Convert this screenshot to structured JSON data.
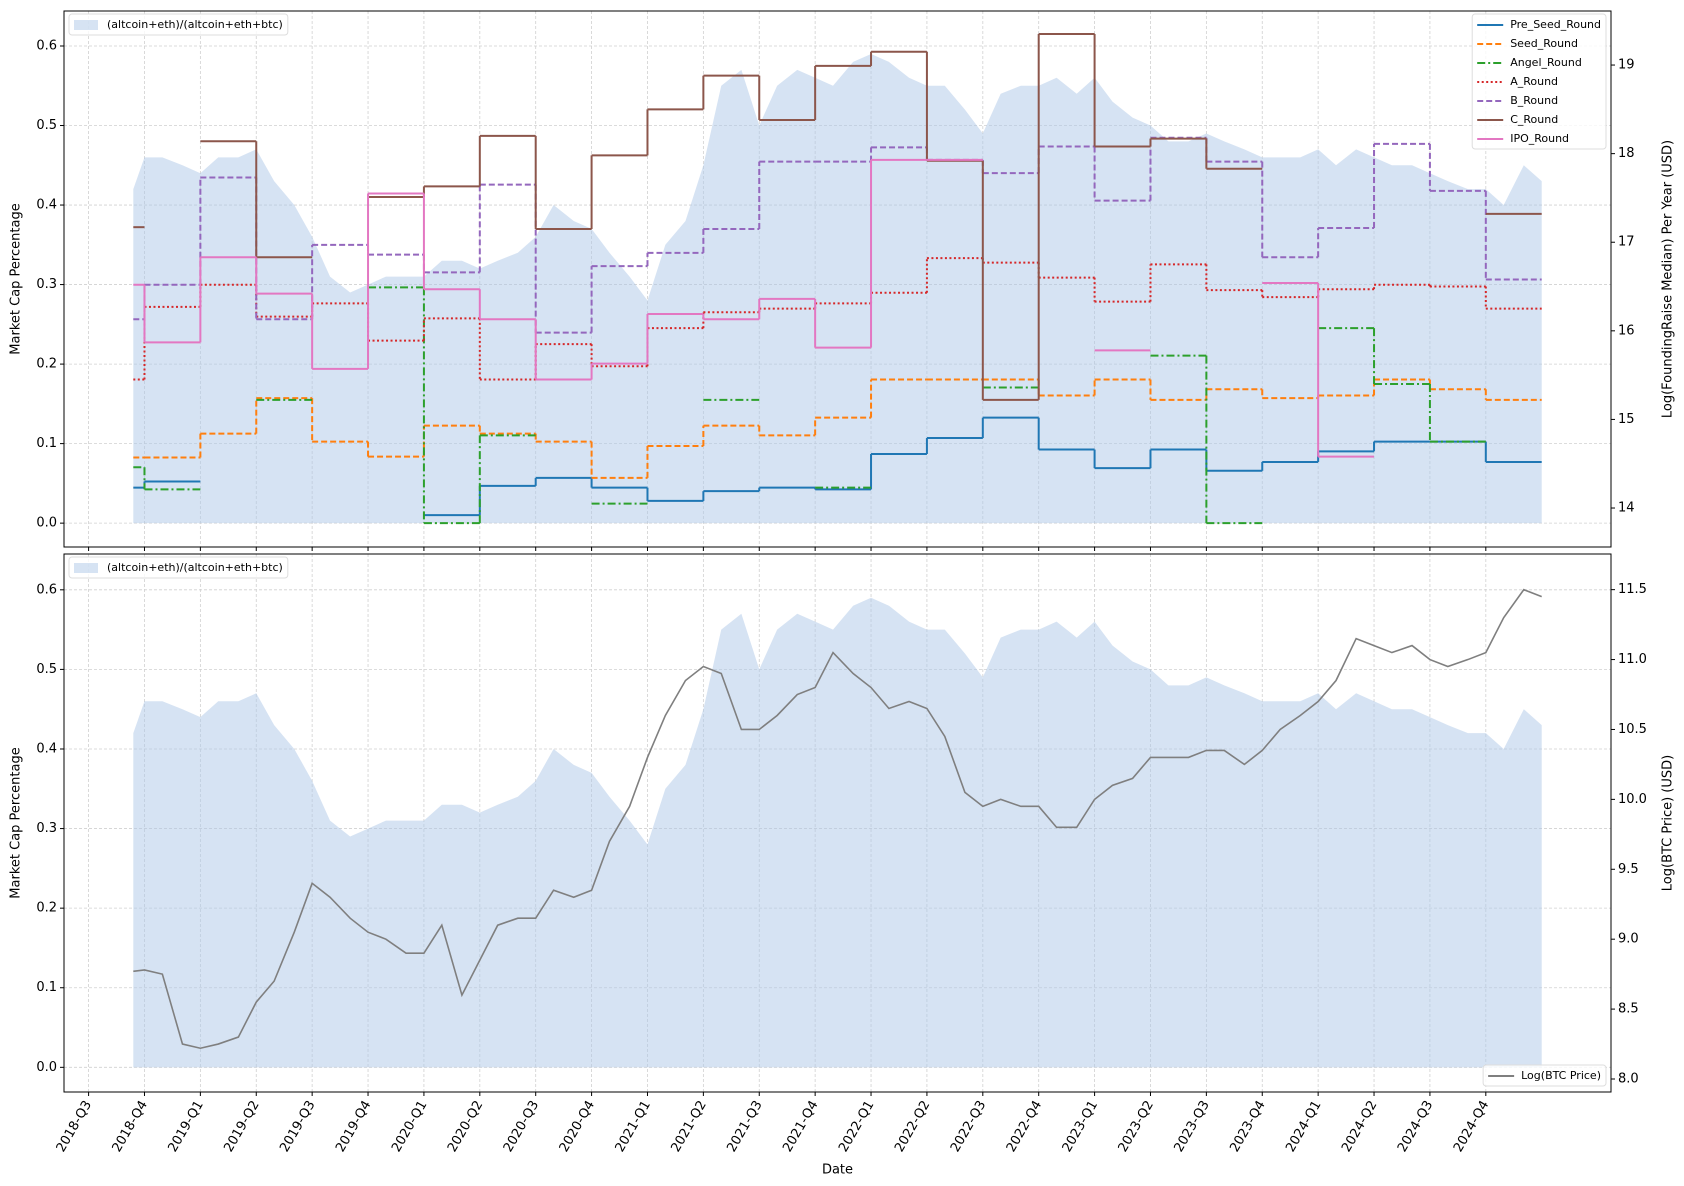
{
  "chart_data": [
    {
      "type": "step",
      "y_label": "Market Cap Percentage",
      "y2_label": "Log(FoundingRaise Median) Per Year (USD)",
      "xlim": [
        2018.39,
        2025.31
      ],
      "ylim": [
        -0.03,
        0.644
      ],
      "yticks": [
        {
          "value": 0,
          "label": "0.0"
        },
        0.1,
        0.2,
        0.3,
        0.4,
        0.5,
        0.6
      ],
      "y2lim": [
        13.56,
        19.61
      ],
      "y2ticks": [
        14,
        15,
        16,
        17,
        18,
        19
      ],
      "grid": true,
      "x_edges": [
        2018.7,
        2018.75,
        2019,
        2019.25,
        2019.5,
        2019.75,
        2020,
        2020.25,
        2020.5,
        2020.75,
        2021,
        2021.25,
        2021.5,
        2021.75,
        2022,
        2022.25,
        2022.5,
        2022.75,
        2023,
        2023.25,
        2023.5,
        2023.75,
        2024,
        2024.25,
        2024.5,
        2024.75,
        2025
      ],
      "series": [
        {
          "name": "(altcoin+eth)/(altcoin+eth+btc)",
          "type": "area",
          "color": "#aec7e8",
          "legend": "upper left",
          "x": [
            2018.7,
            2018.75,
            2018.83,
            2018.92,
            2019,
            2019.08,
            2019.17,
            2019.25,
            2019.33,
            2019.42,
            2019.5,
            2019.58,
            2019.67,
            2019.75,
            2019.83,
            2019.92,
            2020,
            2020.08,
            2020.17,
            2020.25,
            2020.33,
            2020.42,
            2020.5,
            2020.58,
            2020.67,
            2020.75,
            2020.83,
            2020.92,
            2021,
            2021.08,
            2021.17,
            2021.25,
            2021.33,
            2021.42,
            2021.5,
            2021.58,
            2021.67,
            2021.75,
            2021.83,
            2021.92,
            2022,
            2022.08,
            2022.17,
            2022.25,
            2022.33,
            2022.42,
            2022.5,
            2022.58,
            2022.67,
            2022.75,
            2022.83,
            2022.92,
            2023,
            2023.08,
            2023.17,
            2023.25,
            2023.33,
            2023.42,
            2023.5,
            2023.58,
            2023.67,
            2023.75,
            2023.83,
            2023.92,
            2024,
            2024.08,
            2024.17,
            2024.25,
            2024.33,
            2024.42,
            2024.5,
            2024.58,
            2024.67,
            2024.75,
            2024.83,
            2024.92,
            2025
          ],
          "values": [
            0.42,
            0.46,
            0.46,
            0.45,
            0.44,
            0.46,
            0.46,
            0.47,
            0.43,
            0.4,
            0.36,
            0.31,
            0.29,
            0.3,
            0.31,
            0.31,
            0.31,
            0.33,
            0.33,
            0.32,
            0.33,
            0.34,
            0.36,
            0.4,
            0.38,
            0.37,
            0.34,
            0.31,
            0.28,
            0.35,
            0.38,
            0.45,
            0.55,
            0.57,
            0.5,
            0.55,
            0.57,
            0.56,
            0.55,
            0.58,
            0.59,
            0.58,
            0.56,
            0.55,
            0.55,
            0.52,
            0.49,
            0.54,
            0.55,
            0.55,
            0.56,
            0.54,
            0.56,
            0.53,
            0.51,
            0.5,
            0.48,
            0.48,
            0.49,
            0.48,
            0.47,
            0.46,
            0.46,
            0.46,
            0.47,
            0.45,
            0.47,
            0.46,
            0.45,
            0.45,
            0.44,
            0.43,
            0.42,
            0.42,
            0.4,
            0.45,
            0.43
          ]
        },
        {
          "name": "Pre_Seed_Round",
          "axis": "y2",
          "color": "#1f77b4",
          "style": "solid",
          "legend": "upper right",
          "values": [
            14.23,
            14.3,
            null,
            null,
            null,
            null,
            13.92,
            14.25,
            14.34,
            14.23,
            14.08,
            14.19,
            14.23,
            14.21,
            14.61,
            14.79,
            15.02,
            14.66,
            14.45,
            14.66,
            14.42,
            14.52,
            14.64,
            14.75,
            14.75,
            14.52
          ]
        },
        {
          "name": "Seed_Round",
          "axis": "y2",
          "color": "#ff7f0e",
          "style": "dashed",
          "legend": "upper right",
          "values": [
            14.57,
            14.57,
            14.84,
            15.24,
            14.75,
            14.58,
            14.93,
            14.84,
            14.75,
            14.34,
            14.7,
            14.93,
            14.82,
            15.02,
            15.45,
            15.45,
            15.45,
            15.27,
            15.45,
            15.22,
            15.34,
            15.24,
            15.27,
            15.45,
            15.34,
            15.22
          ]
        },
        {
          "name": "Angel_Round",
          "axis": "y2",
          "color": "#2ca02c",
          "style": "dashdot",
          "legend": "upper right",
          "values": [
            14.46,
            14.21,
            null,
            15.22,
            null,
            16.49,
            13.83,
            14.82,
            null,
            14.05,
            null,
            15.22,
            null,
            14.23,
            null,
            null,
            15.36,
            null,
            null,
            15.72,
            13.83,
            null,
            16.03,
            15.4,
            14.75,
            null
          ]
        },
        {
          "name": "A_Round",
          "axis": "y2",
          "color": "#d62728",
          "style": "dotted",
          "legend": "upper right",
          "values": [
            15.45,
            16.27,
            16.52,
            16.16,
            16.31,
            15.89,
            16.14,
            15.45,
            15.85,
            15.6,
            16.03,
            16.21,
            16.25,
            16.31,
            16.43,
            16.82,
            16.77,
            16.6,
            16.33,
            16.75,
            16.46,
            16.38,
            16.47,
            16.52,
            16.5,
            16.25
          ]
        },
        {
          "name": "B_Round",
          "axis": "y2",
          "color": "#9467bd",
          "style": "dashed",
          "legend": "upper right",
          "values": [
            16.13,
            16.52,
            17.73,
            16.13,
            16.97,
            16.86,
            16.66,
            17.65,
            15.98,
            16.73,
            16.88,
            17.15,
            17.91,
            17.91,
            18.07,
            17.93,
            17.78,
            18.08,
            17.47,
            18.18,
            17.91,
            16.83,
            17.16,
            18.11,
            17.58,
            16.58
          ]
        },
        {
          "name": "C_Round",
          "axis": "y2",
          "color": "#8c564b",
          "style": "solid",
          "legend": "upper right",
          "values": [
            17.17,
            null,
            18.14,
            16.83,
            null,
            17.51,
            17.63,
            18.2,
            17.15,
            17.98,
            18.5,
            18.88,
            18.38,
            18.99,
            19.15,
            17.92,
            15.22,
            19.35,
            18.08,
            18.17,
            17.83,
            null,
            null,
            null,
            null,
            17.32
          ]
        },
        {
          "name": "IPO_Round",
          "axis": "y2",
          "color": "#e377c2",
          "style": "solid",
          "legend": "upper right",
          "values": [
            16.52,
            15.87,
            16.83,
            16.42,
            15.57,
            17.55,
            16.47,
            16.13,
            15.45,
            15.63,
            16.19,
            16.13,
            16.36,
            15.81,
            17.93,
            17.93,
            null,
            null,
            15.78,
            null,
            null,
            16.54,
            14.58,
            null,
            null,
            null
          ]
        }
      ]
    },
    {
      "type": "line",
      "x_label": "Date",
      "y_label": "Market Cap Percentage",
      "y2_label": "Log(BTC Price) (USD)",
      "xlim": [
        2018.39,
        2025.31
      ],
      "xticks": [
        {
          "value": 2018.5,
          "label": "2018-Q3"
        },
        {
          "value": 2018.75,
          "label": "2018-Q4"
        },
        {
          "value": 2019,
          "label": "2019-Q1"
        },
        {
          "value": 2019.25,
          "label": "2019-Q2"
        },
        {
          "value": 2019.5,
          "label": "2019-Q3"
        },
        {
          "value": 2019.75,
          "label": "2019-Q4"
        },
        {
          "value": 2020,
          "label": "2020-Q1"
        },
        {
          "value": 2020.25,
          "label": "2020-Q2"
        },
        {
          "value": 2020.5,
          "label": "2020-Q3"
        },
        {
          "value": 2020.75,
          "label": "2020-Q4"
        },
        {
          "value": 2021,
          "label": "2021-Q1"
        },
        {
          "value": 2021.25,
          "label": "2021-Q2"
        },
        {
          "value": 2021.5,
          "label": "2021-Q3"
        },
        {
          "value": 2021.75,
          "label": "2021-Q4"
        },
        {
          "value": 2022,
          "label": "2022-Q1"
        },
        {
          "value": 2022.25,
          "label": "2022-Q2"
        },
        {
          "value": 2022.5,
          "label": "2022-Q3"
        },
        {
          "value": 2022.75,
          "label": "2022-Q4"
        },
        {
          "value": 2023,
          "label": "2023-Q1"
        },
        {
          "value": 2023.25,
          "label": "2023-Q2"
        },
        {
          "value": 2023.5,
          "label": "2023-Q3"
        },
        {
          "value": 2023.75,
          "label": "2023-Q4"
        },
        {
          "value": 2024,
          "label": "2024-Q1"
        },
        {
          "value": 2024.25,
          "label": "2024-Q2"
        },
        {
          "value": 2024.5,
          "label": "2024-Q3"
        },
        {
          "value": 2024.75,
          "label": "2024-Q4"
        }
      ],
      "ylim": [
        -0.031,
        0.645
      ],
      "yticks": [
        {
          "value": 0,
          "label": "0.0"
        },
        0.1,
        0.2,
        0.3,
        0.4,
        0.5,
        0.6
      ],
      "y2lim": [
        7.907,
        11.755
      ],
      "y2ticks": [
        {
          "value": 8,
          "label": "8.0"
        },
        8.5,
        {
          "value": 9,
          "label": "9.0"
        },
        9.5,
        {
          "value": 10,
          "label": "10.0"
        },
        10.5,
        {
          "value": 11,
          "label": "11.0"
        },
        11.5
      ],
      "grid": true,
      "series": [
        {
          "name": "(altcoin+eth)/(altcoin+eth+btc)",
          "type": "area",
          "color": "#aec7e8",
          "legend": "upper left",
          "x": [
            2018.7,
            2018.75,
            2018.83,
            2018.92,
            2019,
            2019.08,
            2019.17,
            2019.25,
            2019.33,
            2019.42,
            2019.5,
            2019.58,
            2019.67,
            2019.75,
            2019.83,
            2019.92,
            2020,
            2020.08,
            2020.17,
            2020.25,
            2020.33,
            2020.42,
            2020.5,
            2020.58,
            2020.67,
            2020.75,
            2020.83,
            2020.92,
            2021,
            2021.08,
            2021.17,
            2021.25,
            2021.33,
            2021.42,
            2021.5,
            2021.58,
            2021.67,
            2021.75,
            2021.83,
            2021.92,
            2022,
            2022.08,
            2022.17,
            2022.25,
            2022.33,
            2022.42,
            2022.5,
            2022.58,
            2022.67,
            2022.75,
            2022.83,
            2022.92,
            2023,
            2023.08,
            2023.17,
            2023.25,
            2023.33,
            2023.42,
            2023.5,
            2023.58,
            2023.67,
            2023.75,
            2023.83,
            2023.92,
            2024,
            2024.08,
            2024.17,
            2024.25,
            2024.33,
            2024.42,
            2024.5,
            2024.58,
            2024.67,
            2024.75,
            2024.83,
            2024.92,
            2025
          ],
          "values": [
            0.42,
            0.46,
            0.46,
            0.45,
            0.44,
            0.46,
            0.46,
            0.47,
            0.43,
            0.4,
            0.36,
            0.31,
            0.29,
            0.3,
            0.31,
            0.31,
            0.31,
            0.33,
            0.33,
            0.32,
            0.33,
            0.34,
            0.36,
            0.4,
            0.38,
            0.37,
            0.34,
            0.31,
            0.28,
            0.35,
            0.38,
            0.45,
            0.55,
            0.57,
            0.5,
            0.55,
            0.57,
            0.56,
            0.55,
            0.58,
            0.59,
            0.58,
            0.56,
            0.55,
            0.55,
            0.52,
            0.49,
            0.54,
            0.55,
            0.55,
            0.56,
            0.54,
            0.56,
            0.53,
            0.51,
            0.5,
            0.48,
            0.48,
            0.49,
            0.48,
            0.47,
            0.46,
            0.46,
            0.46,
            0.47,
            0.45,
            0.47,
            0.46,
            0.45,
            0.45,
            0.44,
            0.43,
            0.42,
            0.42,
            0.4,
            0.45,
            0.43
          ]
        },
        {
          "name": "Log(BTC Price)",
          "axis": "y2",
          "color": "#7f7f7f",
          "style": "solid",
          "legend": "lower right",
          "x": [
            2018.7,
            2018.75,
            2018.83,
            2018.92,
            2019,
            2019.08,
            2019.17,
            2019.25,
            2019.33,
            2019.42,
            2019.5,
            2019.58,
            2019.67,
            2019.75,
            2019.83,
            2019.92,
            2020,
            2020.08,
            2020.17,
            2020.25,
            2020.33,
            2020.42,
            2020.5,
            2020.58,
            2020.67,
            2020.75,
            2020.83,
            2020.92,
            2021,
            2021.08,
            2021.17,
            2021.25,
            2021.33,
            2021.42,
            2021.5,
            2021.58,
            2021.67,
            2021.75,
            2021.83,
            2021.92,
            2022,
            2022.08,
            2022.17,
            2022.25,
            2022.33,
            2022.42,
            2022.5,
            2022.58,
            2022.67,
            2022.75,
            2022.83,
            2022.92,
            2023,
            2023.08,
            2023.17,
            2023.25,
            2023.33,
            2023.42,
            2023.5,
            2023.58,
            2023.67,
            2023.75,
            2023.83,
            2023.92,
            2024,
            2024.08,
            2024.17,
            2024.25,
            2024.33,
            2024.42,
            2024.5,
            2024.58,
            2024.67,
            2024.75,
            2024.83,
            2024.92,
            2025
          ],
          "values": [
            8.77,
            8.78,
            8.75,
            8.25,
            8.22,
            8.25,
            8.3,
            8.55,
            8.7,
            9.05,
            9.4,
            9.3,
            9.15,
            9.05,
            9.0,
            8.9,
            8.9,
            9.1,
            8.6,
            8.85,
            9.1,
            9.15,
            9.15,
            9.35,
            9.3,
            9.35,
            9.7,
            9.95,
            10.3,
            10.6,
            10.85,
            10.95,
            10.9,
            10.5,
            10.5,
            10.6,
            10.75,
            10.8,
            11.05,
            10.9,
            10.8,
            10.65,
            10.7,
            10.65,
            10.45,
            10.05,
            9.95,
            10.0,
            9.95,
            9.95,
            9.8,
            9.8,
            10.0,
            10.1,
            10.15,
            10.3,
            10.3,
            10.3,
            10.35,
            10.35,
            10.25,
            10.35,
            10.5,
            10.6,
            10.7,
            10.85,
            11.15,
            11.1,
            11.05,
            11.1,
            11.0,
            10.95,
            11.0,
            11.05,
            11.3,
            11.5,
            11.45
          ]
        }
      ]
    }
  ]
}
